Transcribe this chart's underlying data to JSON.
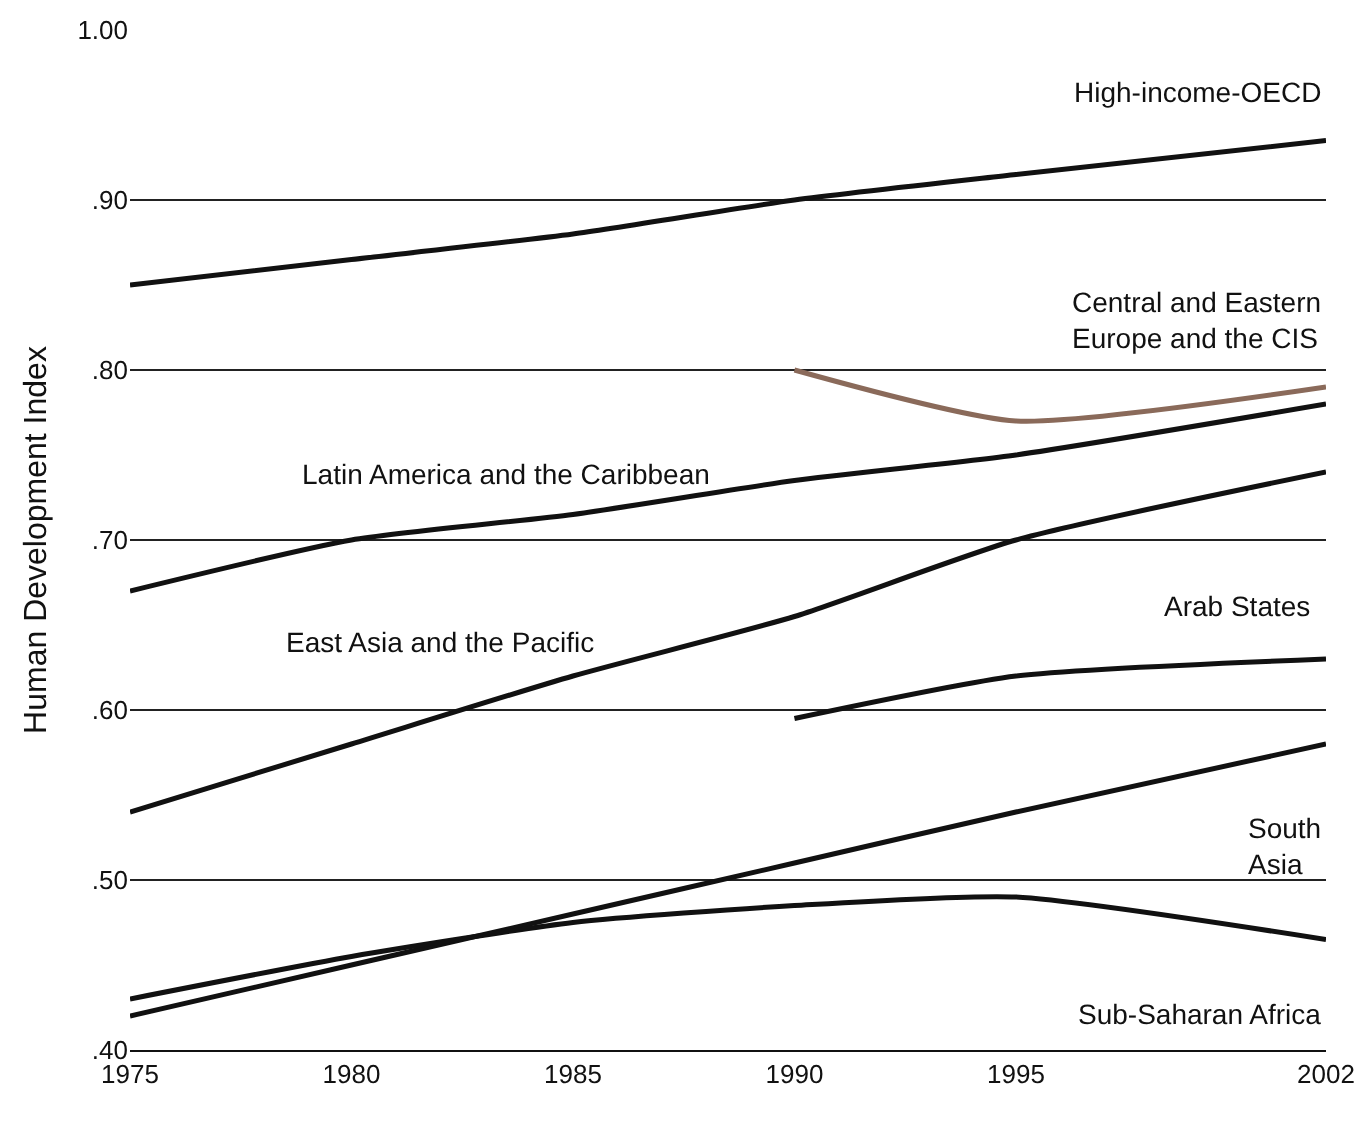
{
  "chart_data": {
    "type": "line",
    "ylabel": "Human Development Index",
    "x": [
      1975,
      1980,
      1985,
      1990,
      1995,
      2002
    ],
    "xlim": [
      1975,
      2002
    ],
    "xticks": [
      1975,
      1980,
      1985,
      1990,
      1995,
      2002
    ],
    "ylim": [
      0.4,
      1.0
    ],
    "yticks": [
      {
        "value": 0.4,
        "label": ".40"
      },
      {
        "value": 0.5,
        "label": ".50"
      },
      {
        "value": 0.6,
        "label": ".60"
      },
      {
        "value": 0.7,
        "label": ".70"
      },
      {
        "value": 0.8,
        "label": ".80"
      },
      {
        "value": 0.9,
        "label": ".90"
      },
      {
        "value": 1.0,
        "label": "1.00"
      }
    ],
    "grid": "y",
    "marker": "none",
    "line_style": "solid",
    "series": [
      {
        "color": "#111111",
        "values": [
          0.85,
          0.865,
          0.88,
          0.9,
          0.915,
          0.935
        ]
      },
      {
        "color": "#8a6a5a",
        "x": [
          1990,
          1995,
          2002
        ],
        "values": [
          0.8,
          0.77,
          0.79
        ]
      },
      {
        "color": "#111111",
        "values": [
          0.67,
          0.7,
          0.715,
          0.735,
          0.75,
          0.78
        ]
      },
      {
        "color": "#111111",
        "values": [
          0.54,
          0.58,
          0.62,
          0.655,
          0.7,
          0.74
        ]
      },
      {
        "color": "#111111",
        "x": [
          1990,
          1995,
          2002
        ],
        "values": [
          0.595,
          0.62,
          0.63
        ]
      },
      {
        "color": "#111111",
        "values": [
          0.42,
          0.45,
          0.48,
          0.51,
          0.54,
          0.58
        ]
      },
      {
        "color": "#111111",
        "values": [
          0.43,
          0.455,
          0.475,
          0.485,
          0.49,
          0.465
        ]
      }
    ],
    "annotations": [
      "High-income-OECD",
      "Central and Eastern\nEurope and the CIS",
      "Latin America and the Caribbean",
      "East Asia and the Pacific",
      "Arab States",
      "South\nAsia",
      "Sub-Saharan Africa"
    ]
  }
}
